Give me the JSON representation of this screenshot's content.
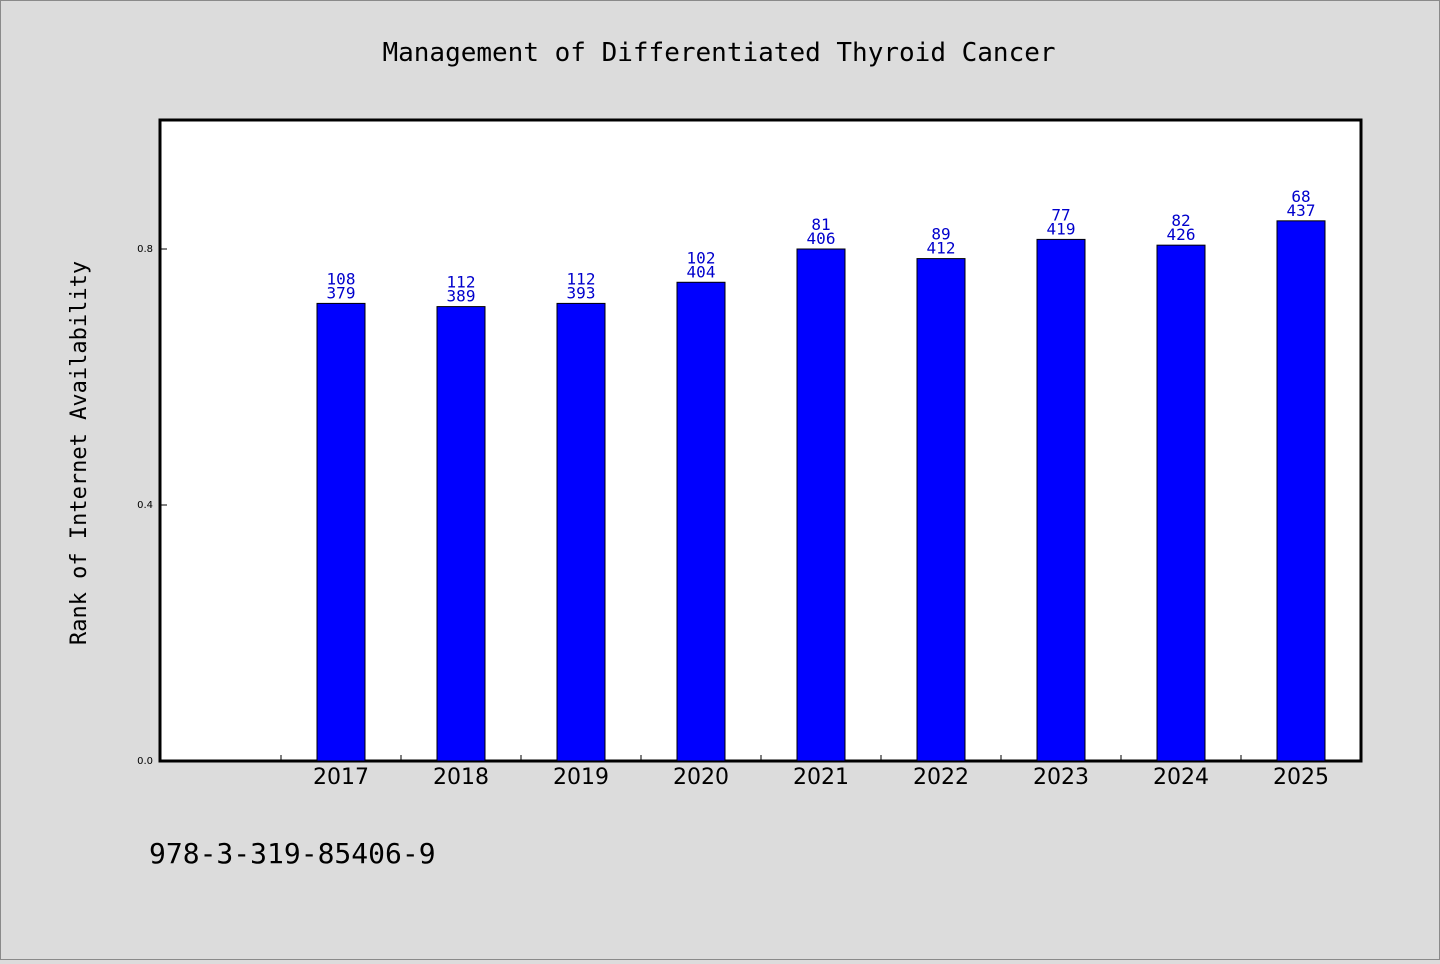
{
  "colors": {
    "background": "#dcdcdc",
    "bar": "#0000ff",
    "bar_label": "#0000cc",
    "plot_background": "#ffffff"
  },
  "isbn": "978-3-319-85406-9",
  "chart_data": {
    "type": "bar",
    "title": "Management of Differentiated Thyroid Cancer",
    "xlabel": "",
    "ylabel": "Rank of Internet Availability",
    "ylim": [
      0,
      1.0
    ],
    "yticks": [
      0.0,
      0.4,
      0.8
    ],
    "ytick_labels": [
      "0.0",
      "0.4",
      "0.8"
    ],
    "grid": false,
    "categories": [
      "2017",
      "2018",
      "2019",
      "2020",
      "2021",
      "2022",
      "2023",
      "2024",
      "2025"
    ],
    "values": [
      0.715,
      0.71,
      0.715,
      0.748,
      0.8,
      0.785,
      0.815,
      0.806,
      0.844
    ],
    "bar_labels_top": [
      "108",
      "112",
      "112",
      "102",
      "81",
      "89",
      "77",
      "82",
      "68"
    ],
    "bar_labels_bottom": [
      "379",
      "389",
      "393",
      "404",
      "406",
      "412",
      "419",
      "426",
      "437"
    ]
  }
}
